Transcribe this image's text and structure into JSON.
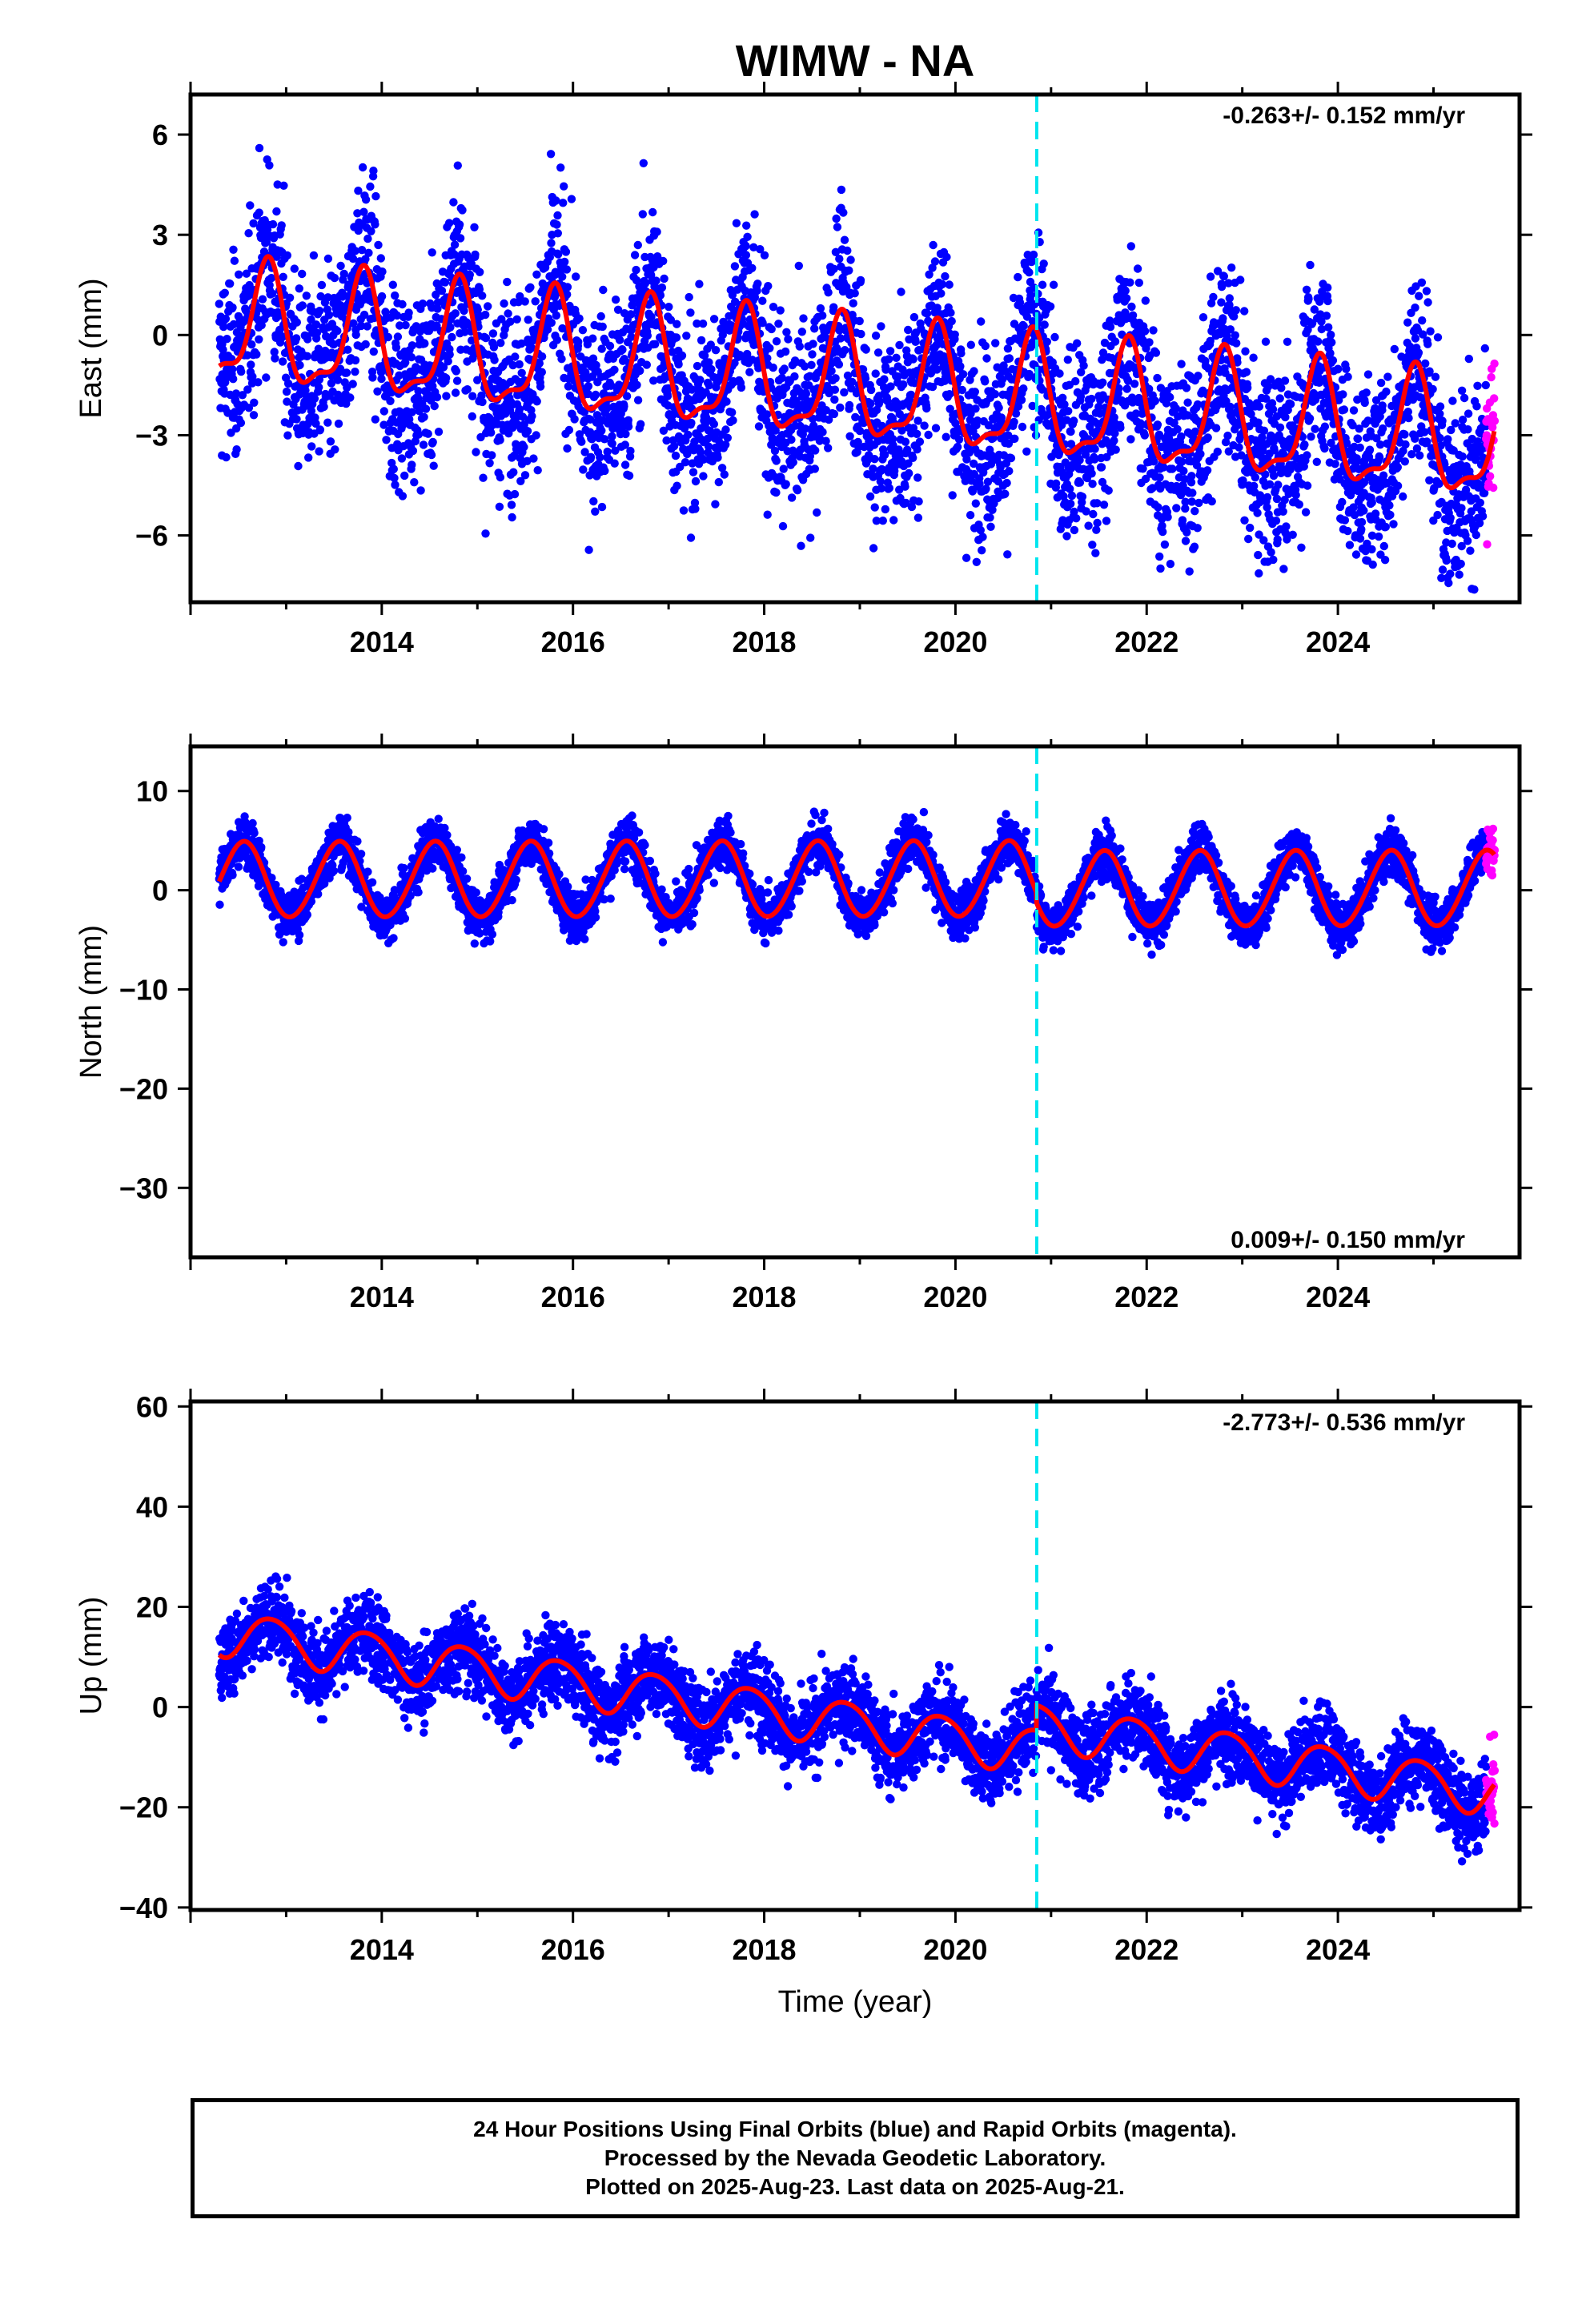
{
  "figure": {
    "title": "WIMW - NA",
    "xlabel": "Time (year)",
    "footer_lines": [
      "24 Hour Positions Using Final Orbits (blue) and Rapid Orbits (magenta).",
      "Processed by the Nevada Geodetic Laboratory.",
      "Plotted on 2025-Aug-23. Last data on 2025-Aug-21."
    ]
  },
  "colors": {
    "final": "#0000ff",
    "rapid": "#ff00ff",
    "model": "#ff0000",
    "step": "#00e5ee"
  },
  "chart_data": [
    {
      "type": "scatter",
      "ylabel": "East (mm)",
      "rate_text": "-0.263+/- 0.152 mm/yr",
      "rate_position": "top-right",
      "xlim": [
        2012.0,
        2025.9
      ],
      "ylim": [
        -8.0,
        7.2
      ],
      "xticks": [
        2014,
        2016,
        2018,
        2020,
        2022,
        2024
      ],
      "xtick_labels": [
        "2014",
        "2016",
        "2018",
        "2020",
        "2022",
        "2024"
      ],
      "yticks": [
        -6,
        -3,
        0,
        3,
        6
      ],
      "ytick_labels": [
        "−6",
        "−3",
        "0",
        "3",
        "6"
      ],
      "grid": false,
      "step_epoch": 2020.85,
      "data_span": [
        2012.3,
        2025.64
      ],
      "rapid_span": [
        2025.55,
        2025.64
      ],
      "model": {
        "offset": 0.2,
        "rate": -0.263,
        "annual": 1.7,
        "phase": 0.55,
        "semiannual": 0.6,
        "semi_phase": 0.2,
        "step": 0.0
      },
      "scatter_sd": 1.4,
      "series": [
        {
          "name": "Final Orbits",
          "color": "#0000ff"
        },
        {
          "name": "Rapid Orbits",
          "color": "#ff00ff"
        },
        {
          "name": "Model",
          "color": "#ff0000"
        }
      ]
    },
    {
      "type": "scatter",
      "ylabel": "North (mm)",
      "rate_text": "0.009+/- 0.150 mm/yr",
      "rate_position": "bottom-right",
      "xlim": [
        2012.0,
        2025.9
      ],
      "ylim": [
        -37.0,
        14.5
      ],
      "xticks": [
        2014,
        2016,
        2018,
        2020,
        2022,
        2024
      ],
      "xtick_labels": [
        "2014",
        "2016",
        "2018",
        "2020",
        "2022",
        "2024"
      ],
      "yticks": [
        -30,
        -20,
        -10,
        0,
        10
      ],
      "ytick_labels": [
        "−30",
        "−20",
        "−10",
        "0",
        "10"
      ],
      "grid": false,
      "step_epoch": 2020.85,
      "data_span": [
        2012.3,
        2025.64
      ],
      "rapid_span": [
        2025.55,
        2025.64
      ],
      "model": {
        "offset": 1.0,
        "rate": 0.009,
        "annual": 3.8,
        "phase": 0.3,
        "semiannual": 0.2,
        "semi_phase": 0.0,
        "step": -1.0
      },
      "scatter_sd": 1.2,
      "series": [
        {
          "name": "Final Orbits",
          "color": "#0000ff"
        },
        {
          "name": "Rapid Orbits",
          "color": "#ff00ff"
        },
        {
          "name": "Model",
          "color": "#ff0000"
        }
      ]
    },
    {
      "type": "scatter",
      "ylabel": "Up (mm)",
      "rate_text": "-2.773+/- 0.536 mm/yr",
      "rate_position": "top-right",
      "xlim": [
        2012.0,
        2025.9
      ],
      "ylim": [
        -40.5,
        61.0
      ],
      "xticks": [
        2014,
        2016,
        2018,
        2020,
        2022,
        2024
      ],
      "xtick_labels": [
        "2014",
        "2016",
        "2018",
        "2020",
        "2022",
        "2024"
      ],
      "yticks": [
        -40,
        -20,
        0,
        20,
        40,
        60
      ],
      "ytick_labels": [
        "−40",
        "−20",
        "0",
        "20",
        "40",
        "60"
      ],
      "grid": false,
      "step_epoch": 2020.85,
      "data_span": [
        2012.3,
        2025.64
      ],
      "rapid_span": [
        2025.55,
        2025.64
      ],
      "model": {
        "offset": 15.0,
        "rate": -2.773,
        "annual": 4.5,
        "phase": 0.6,
        "semiannual": 0.5,
        "semi_phase": 0.0,
        "step": 5.0
      },
      "scatter_sd": 4.0,
      "series": [
        {
          "name": "Final Orbits",
          "color": "#0000ff"
        },
        {
          "name": "Rapid Orbits",
          "color": "#ff00ff"
        },
        {
          "name": "Model",
          "color": "#ff0000"
        }
      ]
    }
  ]
}
